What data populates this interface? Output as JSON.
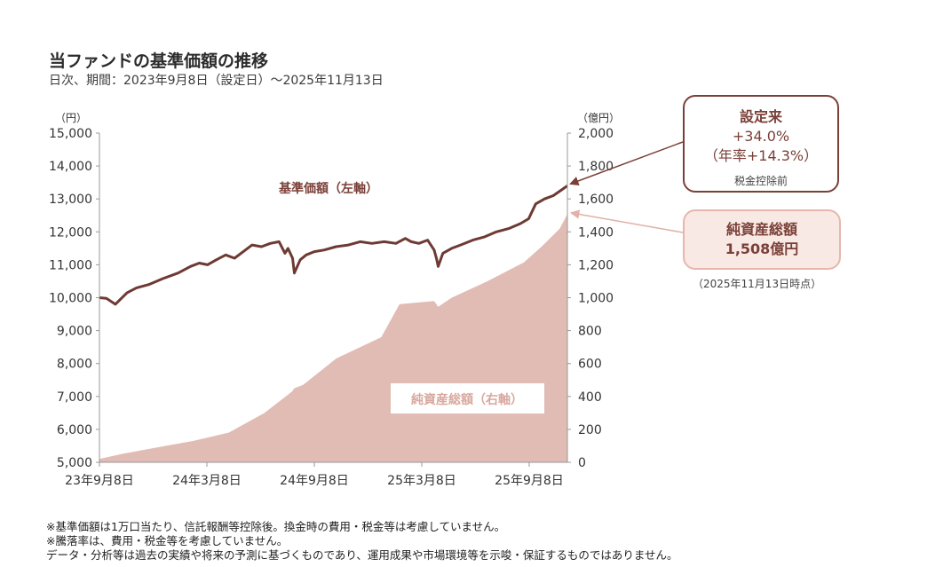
{
  "header": {
    "title": "当ファンドの基準価額の推移",
    "subtitle": "日次、期間：2023年9月8日（設定日）～2025年11月13日"
  },
  "callouts": {
    "since_inception": {
      "label": "設定来",
      "value": "+34.0%",
      "annualized": "（年率+14.3%）",
      "note": "税金控除前"
    },
    "net_assets": {
      "label": "純資産総額",
      "value": "1,508億円",
      "asof": "（2025年11月13日時点）"
    }
  },
  "notes": [
    "※基準価額は1万口当たり、信託報酬等控除後。換金時の費用・税金等は考慮していません。",
    "※騰落率は、費用・税金等を考慮していません。",
    "データ・分析等は過去の実績や将来の予測に基づくものであり、運用成果や市場環境等を示唆・保証するものではありません。"
  ],
  "colors": {
    "nav_line": "#6e3a33",
    "assets_area": "#e1bcb4",
    "callout_border": "#7a4038",
    "callout_fill": "#f9e9e5"
  },
  "chart_data": {
    "type": "line",
    "left_axis": {
      "unit_label": "（円）",
      "ylim": [
        5000,
        15000
      ],
      "ticks": [
        5000,
        6000,
        7000,
        8000,
        9000,
        10000,
        11000,
        12000,
        13000,
        14000,
        15000
      ],
      "tick_labels": [
        "5,000",
        "6,000",
        "7,000",
        "8,000",
        "9,000",
        "10,000",
        "11,000",
        "12,000",
        "13,000",
        "14,000",
        "15,000"
      ]
    },
    "right_axis": {
      "unit_label": "（億円）",
      "ylim": [
        0,
        2000
      ],
      "ticks": [
        0,
        200,
        400,
        600,
        800,
        1000,
        1200,
        1400,
        1600,
        1800,
        2000
      ],
      "tick_labels": [
        "0",
        "200",
        "400",
        "600",
        "800",
        "1,000",
        "1,200",
        "1,400",
        "1,600",
        "1,800",
        "2,000"
      ]
    },
    "x_ticks": [
      "23年9月8日",
      "24年3月8日",
      "24年9月8日",
      "25年3月8日",
      "25年9月8日"
    ],
    "x_range": [
      "2023-09-08",
      "2025-11-13"
    ],
    "grid": false,
    "series": [
      {
        "name": "基準価額（左軸）",
        "type": "line",
        "axis": "left",
        "x": [
          "2023-09-08",
          "2023-09-20",
          "2023-10-05",
          "2023-10-25",
          "2023-11-10",
          "2023-12-01",
          "2023-12-25",
          "2024-01-20",
          "2024-02-10",
          "2024-02-25",
          "2024-03-10",
          "2024-03-25",
          "2024-04-10",
          "2024-04-25",
          "2024-05-10",
          "2024-05-25",
          "2024-06-10",
          "2024-06-25",
          "2024-07-10",
          "2024-07-20",
          "2024-07-25",
          "2024-08-02",
          "2024-08-05",
          "2024-08-15",
          "2024-08-25",
          "2024-09-08",
          "2024-09-25",
          "2024-10-15",
          "2024-11-05",
          "2024-11-25",
          "2024-12-15",
          "2025-01-05",
          "2025-01-25",
          "2025-02-10",
          "2025-02-20",
          "2025-03-05",
          "2025-03-20",
          "2025-03-31",
          "2025-04-04",
          "2025-04-07",
          "2025-04-15",
          "2025-04-30",
          "2025-05-15",
          "2025-06-05",
          "2025-06-25",
          "2025-07-15",
          "2025-08-05",
          "2025-08-25",
          "2025-09-08",
          "2025-09-20",
          "2025-10-05",
          "2025-10-20",
          "2025-11-05",
          "2025-11-13"
        ],
        "values": [
          10000,
          9980,
          9800,
          10150,
          10300,
          10400,
          10580,
          10750,
          10950,
          11050,
          11000,
          11150,
          11300,
          11200,
          11400,
          11600,
          11550,
          11650,
          11700,
          11350,
          11500,
          11200,
          10750,
          11150,
          11300,
          11400,
          11450,
          11550,
          11600,
          11700,
          11650,
          11700,
          11650,
          11800,
          11700,
          11650,
          11750,
          11450,
          11200,
          10950,
          11350,
          11500,
          11600,
          11750,
          11850,
          12000,
          12100,
          12250,
          12400,
          12850,
          13000,
          13100,
          13300,
          13400
        ]
      },
      {
        "name": "純資産総額（右軸）",
        "type": "area",
        "axis": "right",
        "x": [
          "2023-09-08",
          "2023-10-15",
          "2023-12-15",
          "2024-02-15",
          "2024-04-15",
          "2024-06-15",
          "2024-08-01",
          "2024-08-05",
          "2024-08-20",
          "2024-10-15",
          "2024-12-31",
          "2025-01-31",
          "2025-02-28",
          "2025-03-31",
          "2025-04-07",
          "2025-04-30",
          "2025-06-30",
          "2025-08-31",
          "2025-09-30",
          "2025-10-31",
          "2025-11-13"
        ],
        "values": [
          20,
          50,
          90,
          130,
          180,
          300,
          430,
          450,
          470,
          630,
          760,
          960,
          970,
          980,
          945,
          1000,
          1100,
          1215,
          1310,
          1420,
          1508
        ]
      }
    ]
  }
}
